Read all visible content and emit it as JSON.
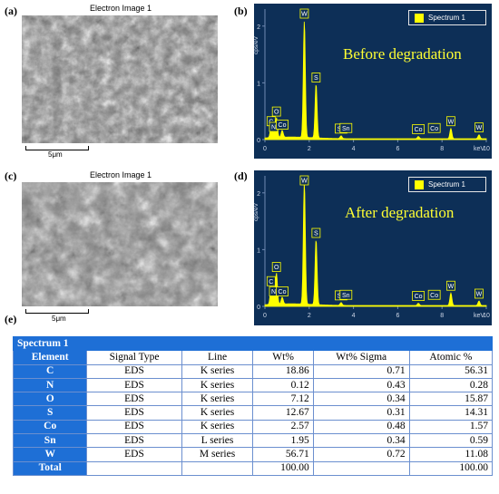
{
  "panels": {
    "a": {
      "label": "(a)",
      "title": "Electron Image 1",
      "scale_label": "5μm"
    },
    "b": {
      "label": "(b)",
      "annotation": "Before degradation"
    },
    "c": {
      "label": "(c)",
      "title": "Electron Image 1",
      "scale_label": "5μm"
    },
    "d": {
      "label": "(d)",
      "annotation": "After degradation"
    },
    "e": {
      "label": "(e)"
    }
  },
  "colors": {
    "spectrum_bg": "#0d2f57",
    "trace": "#ffff00",
    "table_header": "#1e6fd6",
    "annotation": "#ffff33"
  },
  "chart_data": [
    {
      "type": "line",
      "panel": "b",
      "xlabel": "keV",
      "ylabel": "cps/eV",
      "xlim": [
        0,
        10
      ],
      "ylim": [
        0,
        2.3
      ],
      "x_ticks": [
        0,
        2,
        4,
        6,
        8,
        10
      ],
      "y_ticks": [
        0,
        1,
        2
      ],
      "legend": "Spectrum 1",
      "series": [
        {
          "name": "Spectrum 1",
          "peaks": [
            {
              "x": 0.28,
              "y": 0.18
            },
            {
              "x": 0.39,
              "y": 0.08
            },
            {
              "x": 0.52,
              "y": 0.35
            },
            {
              "x": 0.78,
              "y": 0.12
            },
            {
              "x": 1.78,
              "y": 2.05
            },
            {
              "x": 2.31,
              "y": 0.95
            },
            {
              "x": 3.44,
              "y": 0.05
            },
            {
              "x": 6.93,
              "y": 0.04
            },
            {
              "x": 8.4,
              "y": 0.18
            },
            {
              "x": 9.67,
              "y": 0.07
            }
          ]
        }
      ],
      "annotations": [
        {
          "text": "C",
          "x": 0.28
        },
        {
          "text": "N",
          "x": 0.39
        },
        {
          "text": "O",
          "x": 0.52
        },
        {
          "text": "Co",
          "x": 0.78
        },
        {
          "text": "W",
          "x": 1.78
        },
        {
          "text": "S",
          "x": 2.31
        },
        {
          "text": "Sn",
          "x": 3.44
        },
        {
          "text": "Sn",
          "x": 3.66
        },
        {
          "text": "Co",
          "x": 6.93
        },
        {
          "text": "Co",
          "x": 7.65
        },
        {
          "text": "W",
          "x": 8.4
        },
        {
          "text": "W",
          "x": 9.67
        }
      ]
    },
    {
      "type": "line",
      "panel": "d",
      "xlabel": "keV",
      "ylabel": "cps/eV",
      "xlim": [
        0,
        10
      ],
      "ylim": [
        0,
        2.3
      ],
      "x_ticks": [
        0,
        2,
        4,
        6,
        8,
        10
      ],
      "y_ticks": [
        0,
        1,
        2
      ],
      "legend": "Spectrum 1",
      "series": [
        {
          "name": "Spectrum 1",
          "peaks": [
            {
              "x": 0.28,
              "y": 0.3
            },
            {
              "x": 0.39,
              "y": 0.12
            },
            {
              "x": 0.52,
              "y": 0.55
            },
            {
              "x": 0.78,
              "y": 0.12
            },
            {
              "x": 1.78,
              "y": 2.15
            },
            {
              "x": 2.31,
              "y": 1.15
            },
            {
              "x": 3.44,
              "y": 0.05
            },
            {
              "x": 6.93,
              "y": 0.04
            },
            {
              "x": 8.4,
              "y": 0.22
            },
            {
              "x": 9.67,
              "y": 0.08
            }
          ]
        }
      ],
      "annotations": [
        {
          "text": "C",
          "x": 0.28
        },
        {
          "text": "N",
          "x": 0.39
        },
        {
          "text": "O",
          "x": 0.52
        },
        {
          "text": "Co",
          "x": 0.78
        },
        {
          "text": "W",
          "x": 1.78
        },
        {
          "text": "S",
          "x": 2.31
        },
        {
          "text": "Sn",
          "x": 3.44
        },
        {
          "text": "Sn",
          "x": 3.66
        },
        {
          "text": "Co",
          "x": 6.93
        },
        {
          "text": "Co",
          "x": 7.65
        },
        {
          "text": "W",
          "x": 8.4
        },
        {
          "text": "W",
          "x": 9.67
        }
      ]
    }
  ],
  "table": {
    "title": "Spectrum 1",
    "headers": [
      "Element",
      "Signal Type",
      "Line",
      "Wt%",
      "Wt% Sigma",
      "Atomic %"
    ],
    "rows": [
      [
        "C",
        "EDS",
        "K series",
        "18.86",
        "0.71",
        "56.31"
      ],
      [
        "N",
        "EDS",
        "K series",
        "0.12",
        "0.43",
        "0.28"
      ],
      [
        "O",
        "EDS",
        "K series",
        "7.12",
        "0.34",
        "15.87"
      ],
      [
        "S",
        "EDS",
        "K series",
        "12.67",
        "0.31",
        "14.31"
      ],
      [
        "Co",
        "EDS",
        "K series",
        "2.57",
        "0.48",
        "1.57"
      ],
      [
        "Sn",
        "EDS",
        "L series",
        "1.95",
        "0.34",
        "0.59"
      ],
      [
        "W",
        "EDS",
        "M series",
        "56.71",
        "0.72",
        "11.08"
      ]
    ],
    "total": {
      "label": "Total",
      "wt": "100.00",
      "atomic": "100.00"
    }
  }
}
